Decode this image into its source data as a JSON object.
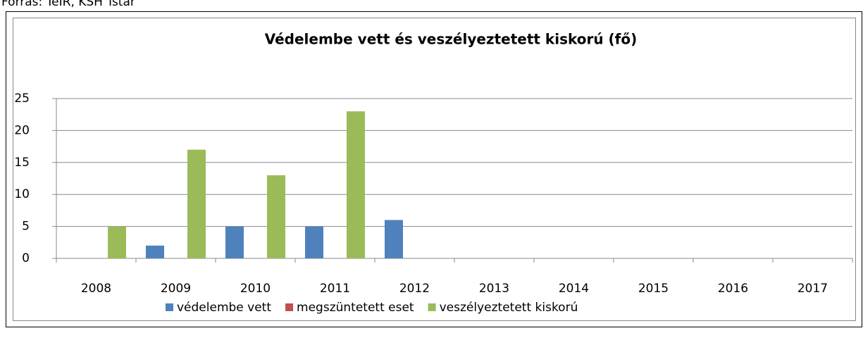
{
  "source": "Forrás: TeIR, KSH Tstar",
  "chart_data": {
    "type": "bar",
    "title": "Védelembe vett és veszélyeztetett kiskorú (fő)",
    "categories": [
      "2008",
      "2009",
      "2010",
      "2011",
      "2012",
      "2013",
      "2014",
      "2015",
      "2016",
      "2017"
    ],
    "series": [
      {
        "name": "védelembe vett",
        "color": "#4f81bd",
        "values": [
          0,
          2,
          5,
          5,
          6,
          null,
          null,
          null,
          null,
          null
        ]
      },
      {
        "name": "megszüntetett eset",
        "color": "#c0504d",
        "values": [
          0,
          0,
          0,
          0,
          0,
          null,
          null,
          null,
          null,
          null
        ]
      },
      {
        "name": "veszélyeztetett kiskorú",
        "color": "#9bbb59",
        "values": [
          5,
          17,
          13,
          23,
          0,
          null,
          null,
          null,
          null,
          null
        ]
      }
    ],
    "ylim": [
      0,
      25
    ],
    "yticks": [
      0,
      5,
      10,
      15,
      20,
      25
    ],
    "grid": true,
    "legend": "bottom"
  }
}
